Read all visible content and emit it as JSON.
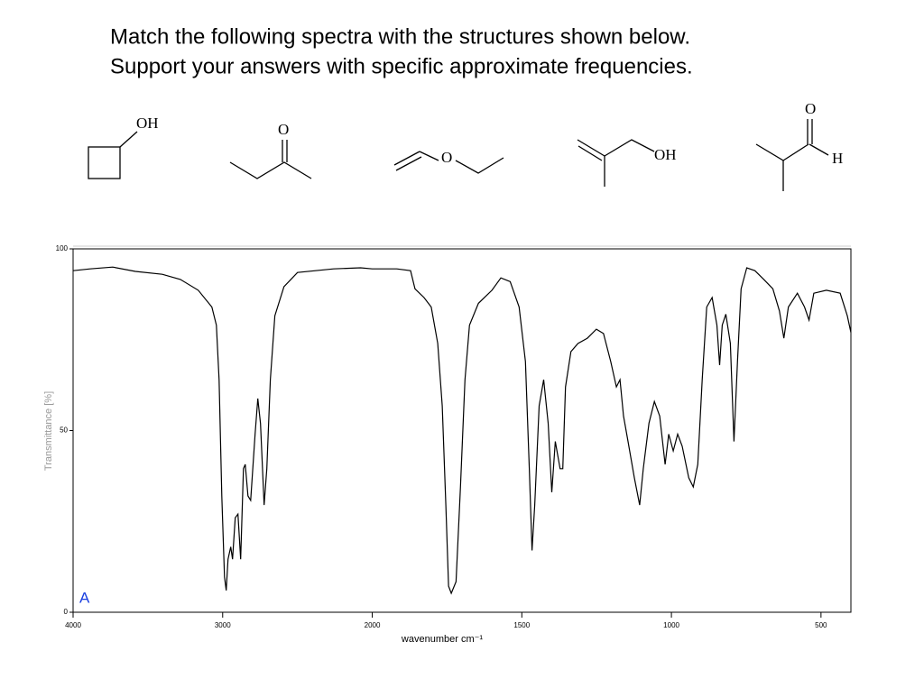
{
  "question": [
    "Match the following spectra with the structures shown below.",
    "Support your answers with specific approximate frequencies."
  ],
  "structures": [
    {
      "labels": [
        "OH"
      ]
    },
    {
      "labels": [
        "O"
      ]
    },
    {
      "labels": [
        "O"
      ]
    },
    {
      "labels": [
        "OH"
      ]
    },
    {
      "labels": [
        "O",
        "H"
      ]
    }
  ],
  "chart_data": {
    "type": "line",
    "annotation": "A",
    "x_label": "wavenumber cm⁻¹",
    "y_label": "Transmittance [%]",
    "color": "#000000",
    "xlim": [
      4000,
      400
    ],
    "xticks": [
      4000,
      3000,
      2000,
      1500,
      1000,
      500
    ],
    "ylim": [
      0,
      100
    ],
    "yticks": [
      0,
      50,
      100
    ],
    "x": [
      4000,
      3886,
      3735,
      3584,
      3404,
      3283,
      3163,
      3072,
      3042,
      3024,
      3006,
      2988,
      2976,
      2964,
      2946,
      2934,
      2916,
      2898,
      2880,
      2861,
      2849,
      2831,
      2813,
      2783,
      2765,
      2747,
      2723,
      2705,
      2681,
      2651,
      2590,
      2500,
      2259,
      2078,
      2000,
      1918,
      1872,
      1857,
      1827,
      1803,
      1781,
      1766,
      1754,
      1745,
      1736,
      1720,
      1705,
      1690,
      1675,
      1645,
      1600,
      1570,
      1539,
      1509,
      1488,
      1475,
      1466,
      1457,
      1442,
      1427,
      1412,
      1400,
      1388,
      1372,
      1363,
      1354,
      1336,
      1312,
      1281,
      1251,
      1227,
      1203,
      1184,
      1172,
      1160,
      1145,
      1124,
      1106,
      1094,
      1075,
      1057,
      1039,
      1021,
      1009,
      994,
      979,
      964,
      942,
      927,
      912,
      897,
      882,
      864,
      848,
      839,
      830,
      818,
      803,
      791,
      779,
      767,
      748,
      721,
      691,
      661,
      639,
      624,
      609,
      579,
      555,
      540,
      524,
      482,
      436,
      412,
      400
    ],
    "values": [
      94,
      94.5,
      95,
      93.8,
      93,
      91.6,
      88.6,
      84,
      79,
      64,
      32,
      9.7,
      6,
      14.6,
      18,
      14.6,
      26,
      27,
      14.6,
      39.5,
      40.7,
      32,
      30.8,
      49,
      58.8,
      51.9,
      29.5,
      39.5,
      64,
      81.6,
      89.6,
      93.5,
      94.5,
      94.8,
      94.5,
      94.5,
      94,
      89,
      86.6,
      84,
      74,
      56.8,
      29.5,
      7.2,
      5.2,
      8.4,
      34.5,
      64,
      79,
      85,
      88.6,
      92,
      91,
      84,
      69,
      39.5,
      17,
      29.5,
      56.8,
      64,
      52,
      33,
      47,
      39.5,
      39.5,
      62,
      71.7,
      74,
      75.4,
      77.9,
      76.7,
      69,
      62,
      64,
      54,
      47,
      37,
      29.5,
      39.5,
      52,
      58,
      54,
      40.7,
      49,
      44.4,
      49,
      45.7,
      37,
      34.5,
      40.7,
      64,
      84,
      86.6,
      79,
      68,
      79,
      82,
      74,
      47,
      69,
      89,
      94.8,
      94,
      91.6,
      89,
      82.9,
      75.4,
      84,
      87.8,
      84,
      80.4,
      87.8,
      88.6,
      87.8,
      81.6,
      77
    ]
  }
}
